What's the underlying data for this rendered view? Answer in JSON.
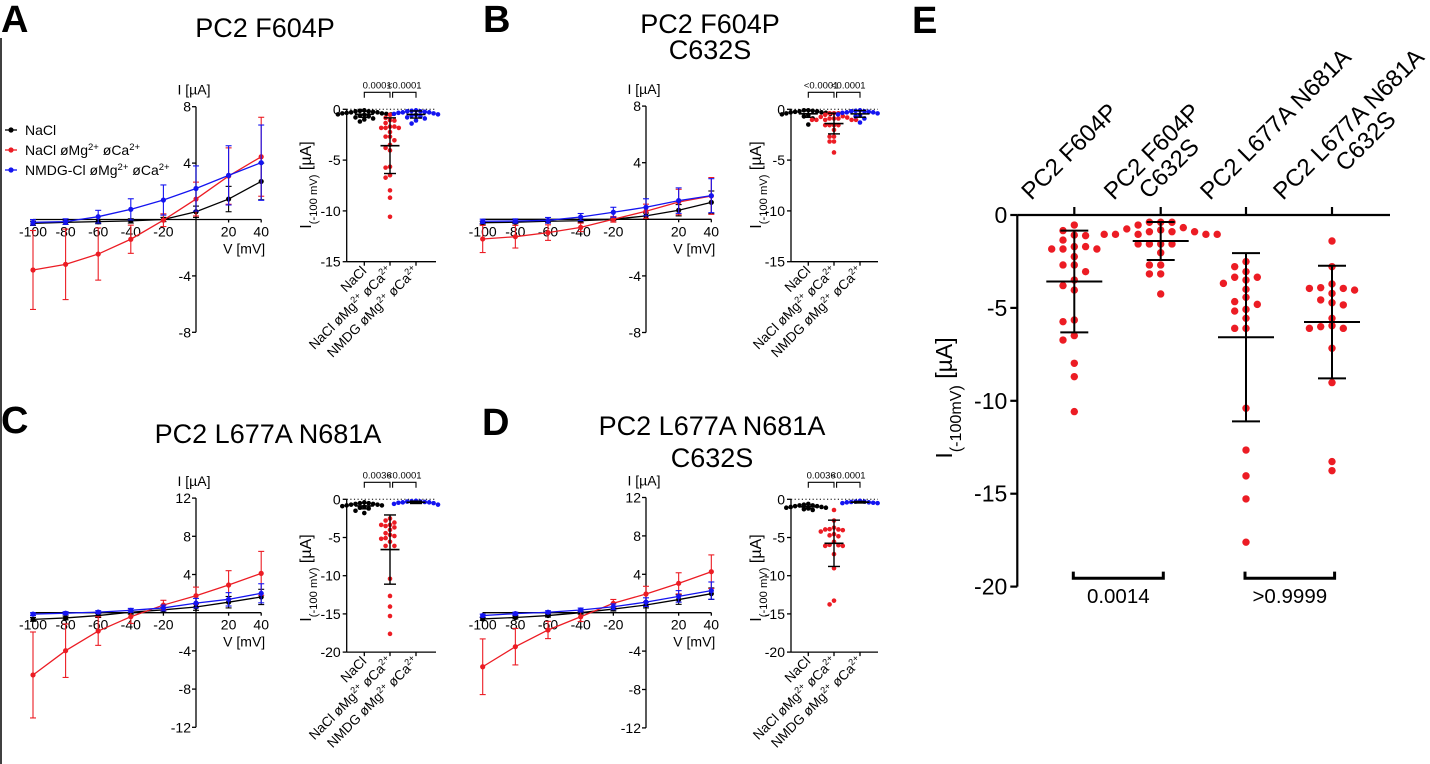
{
  "figure": {
    "panel_letters": [
      "A",
      "B",
      "C",
      "D",
      "E"
    ],
    "legend": [
      {
        "label": "NaCl",
        "color": "#000000"
      },
      {
        "label": "NaCl øMg^2+^ øCa^2+^",
        "color": "#ec1c24"
      },
      {
        "label": "NMDG-Cl øMg^2+^ øCa^2+^",
        "color": "#1414f0"
      }
    ]
  },
  "chart_data": [
    {
      "id": "A-iv",
      "panel": "A",
      "type": "line",
      "title": [
        "PC2 F604P"
      ],
      "xlabel": "V [mV]",
      "ylabel": "I [µA]",
      "xlim": [
        -100,
        40
      ],
      "ylim": [
        -8,
        8
      ],
      "xticks": [
        -100,
        -80,
        -60,
        -40,
        -20,
        20,
        40
      ],
      "yticks": [
        8,
        4,
        -4,
        -8
      ],
      "x": [
        -100,
        -80,
        -60,
        -40,
        -20,
        0,
        20,
        40
      ],
      "series": [
        {
          "name": "NaCl",
          "color": "#000000",
          "values": [
            -0.27,
            -0.2,
            -0.15,
            -0.1,
            0.0,
            0.55,
            1.45,
            2.7
          ],
          "errors": [
            0.15,
            0.15,
            0.15,
            0.15,
            0.15,
            0.4,
            0.9,
            1.3
          ]
        },
        {
          "name": "NaCl øMg2+ øCa2+",
          "color": "#ec1c24",
          "values": [
            -3.58,
            -3.18,
            -2.45,
            -1.4,
            -0.05,
            1.45,
            3.08,
            4.45
          ],
          "errors": [
            2.8,
            2.5,
            1.85,
            1.0,
            0.45,
            1.2,
            2.0,
            2.8
          ]
        },
        {
          "name": "NMDG-Cl øMg2+ øCa2+",
          "color": "#1414f0",
          "values": [
            -0.2,
            -0.15,
            0.2,
            0.72,
            1.38,
            2.2,
            3.13,
            4.03
          ],
          "errors": [
            0.2,
            0.2,
            0.45,
            0.75,
            1.07,
            1.6,
            2.1,
            2.67
          ]
        }
      ]
    },
    {
      "id": "A-scatter",
      "panel": "A",
      "type": "scatter",
      "ylabel": "I_(-100 mV)_ [µA]",
      "ylim": [
        -15,
        0
      ],
      "yticks": [
        0,
        -5,
        -10,
        -15
      ],
      "reference_line": 0,
      "categories": [
        "NaCl",
        "NaCl øMg^2+^ øCa^2+^",
        "NMDG øMg^2+^ øCa^2+^"
      ],
      "groups": [
        {
          "name": "NaCl",
          "color": "#000000",
          "mean": -0.49,
          "sd": 0.3,
          "values": [
            -0.1,
            -0.15,
            -0.2,
            -0.2,
            -0.25,
            -0.3,
            -0.3,
            -0.35,
            -0.4,
            -0.4,
            -0.45,
            -0.5,
            -0.5,
            -0.55,
            -0.6,
            -0.7,
            -0.8,
            -0.9,
            -1.0,
            -1.2
          ]
        },
        {
          "name": "NaCl øMg2+ øCa2+",
          "color": "#ec1c24",
          "mean": -3.58,
          "sd": 2.74,
          "values": [
            -0.54,
            -0.84,
            -1.08,
            -1.11,
            -1.35,
            -1.7,
            -1.7,
            -1.83,
            -1.83,
            -1.83,
            -2.24,
            -2.69,
            -2.69,
            -3.05,
            -3.5,
            -3.8,
            -4.04,
            -5.65,
            -5.74,
            -6.49,
            -6.73,
            -7.98,
            -8.7,
            -10.58
          ]
        },
        {
          "name": "NMDG øMg2+ øCa2+",
          "color": "#1414f0",
          "mean": -0.51,
          "sd": 0.35,
          "values": [
            -0.1,
            -0.15,
            -0.2,
            -0.2,
            -0.25,
            -0.3,
            -0.3,
            -0.35,
            -0.4,
            -0.45,
            -0.5,
            -0.55,
            -0.6,
            -0.7,
            -0.8,
            -0.9,
            -1.1,
            -1.4
          ]
        }
      ],
      "comparisons": [
        {
          "from": 0,
          "to": 1,
          "label": "0.0001"
        },
        {
          "from": 1,
          "to": 2,
          "label": "<0.0001"
        }
      ]
    },
    {
      "id": "B-iv",
      "panel": "B",
      "type": "line",
      "title": [
        "PC2 F604P",
        "C632S"
      ],
      "xlabel": "V [mV]",
      "ylabel": "I [µA]",
      "xlim": [
        -100,
        40
      ],
      "ylim": [
        -8,
        8
      ],
      "xticks": [
        -100,
        -80,
        -60,
        -40,
        -20,
        20,
        40
      ],
      "yticks": [
        8,
        4,
        -4,
        -8
      ],
      "x": [
        -100,
        -80,
        -60,
        -40,
        -20,
        0,
        20,
        40
      ],
      "series": [
        {
          "name": "NaCl",
          "color": "#000000",
          "values": [
            -0.24,
            -0.21,
            -0.14,
            -0.1,
            0.0,
            0.24,
            0.64,
            1.2
          ],
          "errors": [
            0.1,
            0.1,
            0.1,
            0.1,
            0.1,
            0.2,
            0.4,
            0.8
          ]
        },
        {
          "name": "NaCl øMg2+ øCa2+",
          "color": "#ec1c24",
          "values": [
            -1.39,
            -1.23,
            -0.94,
            -0.57,
            0.0,
            0.57,
            1.22,
            1.65
          ],
          "errors": [
            0.96,
            0.8,
            0.55,
            0.3,
            0.2,
            0.5,
            0.9,
            1.3
          ]
        },
        {
          "name": "NMDG-Cl øMg2+ øCa2+",
          "color": "#1414f0",
          "values": [
            -0.14,
            -0.12,
            -0.07,
            0.16,
            0.5,
            0.85,
            1.32,
            1.67
          ],
          "errors": [
            0.15,
            0.15,
            0.2,
            0.25,
            0.35,
            0.6,
            0.9,
            1.2
          ]
        }
      ]
    },
    {
      "id": "B-scatter",
      "panel": "B",
      "type": "scatter",
      "ylabel": "I_(-100 mV)_ [µA]",
      "ylim": [
        -15,
        0
      ],
      "yticks": [
        0,
        -5,
        -10,
        -15
      ],
      "reference_line": 0,
      "categories": [
        "NaCl",
        "NaCl øMg^2+^ øCa^2+^",
        "NMDG øMg^2+^ øCa^2+^"
      ],
      "groups": [
        {
          "name": "NaCl",
          "color": "#000000",
          "mean": -0.44,
          "sd": 0.35,
          "values": [
            -0.1,
            -0.1,
            -0.15,
            -0.2,
            -0.2,
            -0.25,
            -0.3,
            -0.3,
            -0.35,
            -0.4,
            -0.45,
            -0.5,
            -0.6,
            -0.7,
            -0.9,
            -1.5
          ]
        },
        {
          "name": "NaCl øMg2+ øCa2+",
          "color": "#ec1c24",
          "mean": -1.4,
          "sd": 1.02,
          "values": [
            -0.39,
            -0.39,
            -0.39,
            -0.54,
            -0.68,
            -0.75,
            -0.81,
            -0.9,
            -0.9,
            -0.9,
            -1.04,
            -1.04,
            -1.04,
            -1.04,
            -1.04,
            -1.56,
            -1.56,
            -1.56,
            -1.56,
            -2.03,
            -2.69,
            -2.69,
            -3.17,
            -3.17,
            -4.25
          ]
        },
        {
          "name": "NMDG øMg2+ øCa2+",
          "color": "#1414f0",
          "mean": -0.45,
          "sd": 0.33,
          "values": [
            -0.1,
            -0.15,
            -0.2,
            -0.2,
            -0.25,
            -0.3,
            -0.3,
            -0.35,
            -0.4,
            -0.5,
            -0.6,
            -0.7,
            -0.9,
            -1.3
          ]
        }
      ],
      "comparisons": [
        {
          "from": 0,
          "to": 1,
          "label": "<0.0001"
        },
        {
          "from": 1,
          "to": 2,
          "label": "<0.0001"
        }
      ]
    },
    {
      "id": "C-iv",
      "panel": "C",
      "type": "line",
      "title": [
        "PC2 L677A N681A"
      ],
      "xlabel": "V [mV]",
      "ylabel": "I [µA]",
      "xlim": [
        -100,
        40
      ],
      "ylim": [
        -12,
        12
      ],
      "xticks": [
        -100,
        -80,
        -60,
        -40,
        -20,
        20,
        40
      ],
      "yticks": [
        12,
        8,
        4,
        -4,
        -8,
        -12
      ],
      "x": [
        -100,
        -80,
        -60,
        -40,
        -20,
        0,
        20,
        40
      ],
      "series": [
        {
          "name": "NaCl",
          "color": "#000000",
          "values": [
            -0.7,
            -0.55,
            -0.3,
            0.05,
            0.3,
            0.6,
            1.1,
            1.65
          ],
          "errors": [
            0.2,
            0.2,
            0.2,
            0.2,
            0.25,
            0.35,
            0.6,
            0.8
          ]
        },
        {
          "name": "NaCl øMg2+ øCa2+",
          "color": "#ec1c24",
          "values": [
            -6.52,
            -3.98,
            -1.92,
            -0.42,
            0.8,
            1.78,
            2.9,
            4.12
          ],
          "errors": [
            4.5,
            2.8,
            1.5,
            0.7,
            0.5,
            0.9,
            1.5,
            2.3
          ]
        },
        {
          "name": "NMDG-Cl øMg2+ øCa2+",
          "color": "#1414f0",
          "values": [
            -0.15,
            -0.05,
            0.06,
            0.25,
            0.5,
            1.0,
            1.4,
            2.03
          ],
          "errors": [
            0.15,
            0.15,
            0.15,
            0.2,
            0.3,
            0.5,
            0.7,
            1.0
          ]
        }
      ]
    },
    {
      "id": "C-scatter",
      "panel": "C",
      "type": "scatter",
      "ylabel": "I_(-100 mV)_ [µA]",
      "ylim": [
        -20,
        0
      ],
      "yticks": [
        0,
        -5,
        -10,
        -15,
        -20
      ],
      "reference_line": 0,
      "categories": [
        "NaCl",
        "NaCl øMg^2+^ øCa^2+^",
        "NMDG øMg^2+^ øCa^2+^"
      ],
      "groups": [
        {
          "name": "NaCl",
          "color": "#000000",
          "mean": -0.87,
          "sd": 0.38,
          "values": [
            -0.4,
            -0.5,
            -0.5,
            -0.6,
            -0.6,
            -0.7,
            -0.7,
            -0.8,
            -0.8,
            -0.9,
            -1.0,
            -1.1,
            -1.2,
            -1.5,
            -1.8
          ]
        },
        {
          "name": "NaCl øMg2+ øCa2+",
          "color": "#ec1c24",
          "mean": -6.58,
          "sd": 4.53,
          "values": [
            -2.51,
            -2.78,
            -3.05,
            -3.35,
            -3.35,
            -3.5,
            -3.68,
            -4.0,
            -4.43,
            -4.66,
            -4.81,
            -5.08,
            -5.17,
            -5.56,
            -6.1,
            -6.1,
            -10.4,
            -12.65,
            -14.04,
            -15.28,
            -17.61
          ]
        },
        {
          "name": "NMDG øMg2+ øCa2+",
          "color": "#1414f0",
          "mean": -0.4,
          "sd": 0.15,
          "values": [
            -0.2,
            -0.25,
            -0.3,
            -0.3,
            -0.35,
            -0.4,
            -0.4,
            -0.45,
            -0.5,
            -0.6,
            -0.7
          ]
        }
      ],
      "comparisons": [
        {
          "from": 0,
          "to": 1,
          "label": "0.0036"
        },
        {
          "from": 1,
          "to": 2,
          "label": "<0.0001"
        }
      ]
    },
    {
      "id": "D-iv",
      "panel": "D",
      "type": "line",
      "title": [
        "PC2 L677A N681A",
        "C632S"
      ],
      "xlabel": "V [mV]",
      "ylabel": "I [µA]",
      "xlim": [
        -100,
        40
      ],
      "ylim": [
        -12,
        12
      ],
      "xticks": [
        -100,
        -80,
        -60,
        -40,
        -20,
        20,
        40
      ],
      "yticks": [
        12,
        8,
        4,
        -4,
        -8,
        -12
      ],
      "x": [
        -100,
        -80,
        -60,
        -40,
        -20,
        0,
        20,
        40
      ],
      "series": [
        {
          "name": "NaCl",
          "color": "#000000",
          "values": [
            -0.65,
            -0.5,
            -0.3,
            0.0,
            0.38,
            0.8,
            1.37,
            1.98
          ],
          "errors": [
            0.15,
            0.15,
            0.15,
            0.15,
            0.2,
            0.3,
            0.5,
            0.6
          ]
        },
        {
          "name": "NaCl øMg2+ øCa2+",
          "color": "#ec1c24",
          "values": [
            -5.63,
            -3.54,
            -1.8,
            -0.42,
            0.98,
            1.95,
            3.06,
            4.27
          ],
          "errors": [
            2.9,
            1.9,
            0.9,
            0.5,
            0.4,
            0.8,
            1.1,
            1.75
          ]
        },
        {
          "name": "NMDG-Cl øMg2+ øCa2+",
          "color": "#1414f0",
          "values": [
            -0.3,
            -0.1,
            0.05,
            0.28,
            0.62,
            1.1,
            1.7,
            2.3
          ],
          "errors": [
            0.15,
            0.15,
            0.15,
            0.2,
            0.3,
            0.45,
            0.6,
            0.9
          ]
        }
      ]
    },
    {
      "id": "D-scatter",
      "panel": "D",
      "type": "scatter",
      "ylabel": "I_(-100 mV)_ [µA]",
      "ylim": [
        -20,
        0
      ],
      "yticks": [
        0,
        -5,
        -10,
        -15,
        -20
      ],
      "reference_line": 0,
      "categories": [
        "NaCl",
        "NaCl øMg^2+^ øCa^2+^",
        "NMDG øMg^2+^ øCa^2+^"
      ],
      "groups": [
        {
          "name": "NaCl",
          "color": "#000000",
          "mean": -0.98,
          "sd": 0.23,
          "values": [
            -0.6,
            -0.7,
            -0.8,
            -0.8,
            -0.9,
            -0.9,
            -1.0,
            -1.0,
            -1.1,
            -1.1,
            -1.2,
            -1.3,
            -1.4
          ]
        },
        {
          "name": "NaCl øMg2+ øCa2+",
          "color": "#ec1c24",
          "mean": -5.76,
          "sd": 3.03,
          "values": [
            -1.4,
            -2.78,
            -3.71,
            -3.91,
            -3.95,
            -3.95,
            -4.04,
            -4.22,
            -4.57,
            -4.72,
            -4.84,
            -5.56,
            -5.96,
            -6.01,
            -6.1,
            -6.1,
            -7.17,
            -9.02,
            -13.27,
            -13.76
          ]
        },
        {
          "name": "NMDG øMg2+ øCa2+",
          "color": "#1414f0",
          "mean": -0.38,
          "sd": 0.1,
          "values": [
            -0.2,
            -0.3,
            -0.3,
            -0.35,
            -0.4,
            -0.4,
            -0.45,
            -0.5,
            -0.5
          ]
        }
      ],
      "comparisons": [
        {
          "from": 0,
          "to": 1,
          "label": "0.0036"
        },
        {
          "from": 1,
          "to": 2,
          "label": "<0.0001"
        }
      ]
    },
    {
      "id": "E",
      "panel": "E",
      "type": "scatter",
      "ylabel": "I_(-100mV)_ [µA]",
      "ylim": [
        -20,
        0
      ],
      "yticks": [
        0,
        -5,
        -10,
        -15,
        -20
      ],
      "categories": [
        [
          "PC2 F604P"
        ],
        [
          "PC2 F604P",
          "C632S"
        ],
        [
          "PC2 L677A N681A"
        ],
        [
          "PC2 L677A N681A",
          "C632S"
        ]
      ],
      "groups": [
        {
          "name": "PC2 F604P",
          "color": "#ec1c24",
          "mean": -3.58,
          "sd": 2.74,
          "values": [
            -0.54,
            -0.84,
            -1.08,
            -1.11,
            -1.35,
            -1.7,
            -1.7,
            -1.83,
            -1.83,
            -1.83,
            -2.24,
            -2.69,
            -2.69,
            -3.05,
            -3.5,
            -3.8,
            -4.04,
            -5.65,
            -5.74,
            -6.49,
            -6.73,
            -7.98,
            -8.7,
            -10.58
          ]
        },
        {
          "name": "PC2 F604P C632S",
          "color": "#ec1c24",
          "mean": -1.4,
          "sd": 1.02,
          "values": [
            -0.39,
            -0.39,
            -0.39,
            -0.54,
            -0.68,
            -0.75,
            -0.81,
            -0.9,
            -0.9,
            -0.9,
            -1.04,
            -1.04,
            -1.04,
            -1.04,
            -1.04,
            -1.56,
            -1.56,
            -1.56,
            -1.56,
            -2.03,
            -2.69,
            -2.69,
            -3.17,
            -3.17,
            -4.25
          ]
        },
        {
          "name": "PC2 L677A N681A",
          "color": "#ec1c24",
          "mean": -6.58,
          "sd": 4.53,
          "values": [
            -2.51,
            -2.78,
            -3.05,
            -3.35,
            -3.35,
            -3.5,
            -3.68,
            -4.0,
            -4.43,
            -4.66,
            -4.81,
            -5.08,
            -5.17,
            -5.56,
            -6.1,
            -6.1,
            -10.4,
            -12.65,
            -14.04,
            -15.28,
            -17.61
          ]
        },
        {
          "name": "PC2 L677A N681A C632S",
          "color": "#ec1c24",
          "mean": -5.76,
          "sd": 3.03,
          "values": [
            -1.4,
            -2.78,
            -3.71,
            -3.91,
            -3.95,
            -3.95,
            -4.04,
            -4.22,
            -4.57,
            -4.72,
            -4.84,
            -5.56,
            -5.96,
            -6.01,
            -6.1,
            -6.1,
            -7.17,
            -9.02,
            -13.27,
            -13.76
          ]
        }
      ],
      "comparisons": [
        {
          "from": 0,
          "to": 1,
          "label": "0.0014"
        },
        {
          "from": 2,
          "to": 3,
          "label": ">0.9999"
        }
      ]
    }
  ]
}
